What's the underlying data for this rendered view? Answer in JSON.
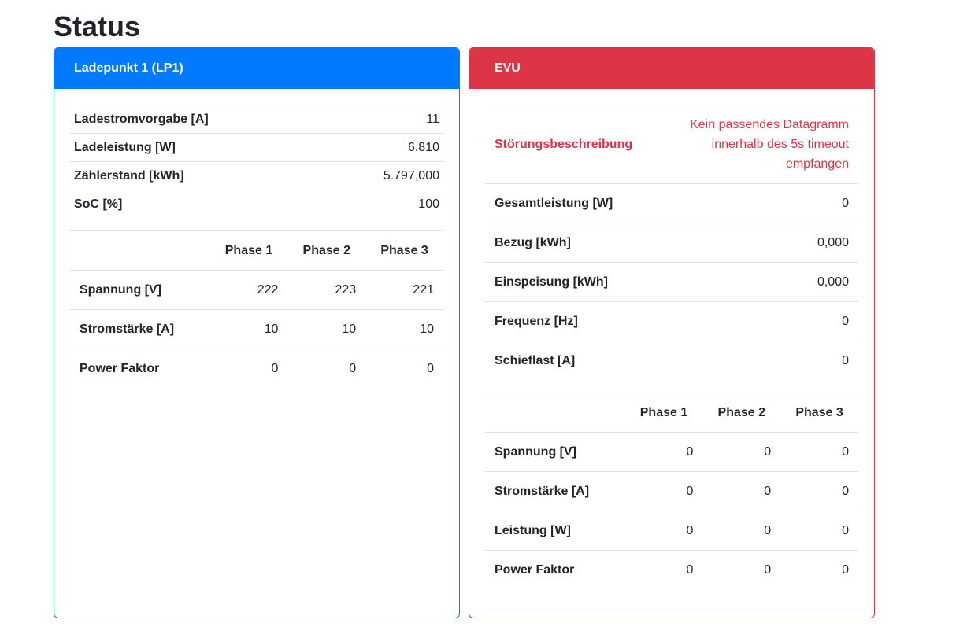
{
  "page": {
    "title": "Status"
  },
  "colors": {
    "primary": "#007bff",
    "danger": "#dc3545",
    "row_border": "#dee2e6",
    "text": "#212529"
  },
  "cards": {
    "chargepoint": {
      "title": "Ladepunkt 1 (LP1)",
      "values": [
        {
          "label": "Ladestromvorgabe [A]",
          "value": "11"
        },
        {
          "label": "Ladeleistung [W]",
          "value": "6.810"
        },
        {
          "label": "Zählerstand [kWh]",
          "value": "5.797,000"
        },
        {
          "label": "SoC [%]",
          "value": "100"
        }
      ],
      "phase_table": {
        "columns": [
          "Phase 1",
          "Phase 2",
          "Phase 3"
        ],
        "rows": [
          {
            "label": "Spannung [V]",
            "values": [
              "222",
              "223",
              "221"
            ]
          },
          {
            "label": "Stromstärke [A]",
            "values": [
              "10",
              "10",
              "10"
            ]
          },
          {
            "label": "Power Faktor",
            "values": [
              "0",
              "0",
              "0"
            ]
          }
        ]
      }
    },
    "evu": {
      "title": "EVU",
      "fault": {
        "label": "Störungsbeschreibung",
        "value": "Kein passendes Datagramm innerhalb des 5s timeout empfangen"
      },
      "values": [
        {
          "label": "Gesamtleistung [W]",
          "value": "0"
        },
        {
          "label": "Bezug [kWh]",
          "value": "0,000"
        },
        {
          "label": "Einspeisung [kWh]",
          "value": "0,000"
        },
        {
          "label": "Frequenz [Hz]",
          "value": "0"
        },
        {
          "label": "Schieflast [A]",
          "value": "0"
        }
      ],
      "phase_table": {
        "columns": [
          "Phase 1",
          "Phase 2",
          "Phase 3"
        ],
        "rows": [
          {
            "label": "Spannung [V]",
            "values": [
              "0",
              "0",
              "0"
            ]
          },
          {
            "label": "Stromstärke [A]",
            "values": [
              "0",
              "0",
              "0"
            ]
          },
          {
            "label": "Leistung [W]",
            "values": [
              "0",
              "0",
              "0"
            ]
          },
          {
            "label": "Power Faktor",
            "values": [
              "0",
              "0",
              "0"
            ]
          }
        ]
      }
    }
  }
}
